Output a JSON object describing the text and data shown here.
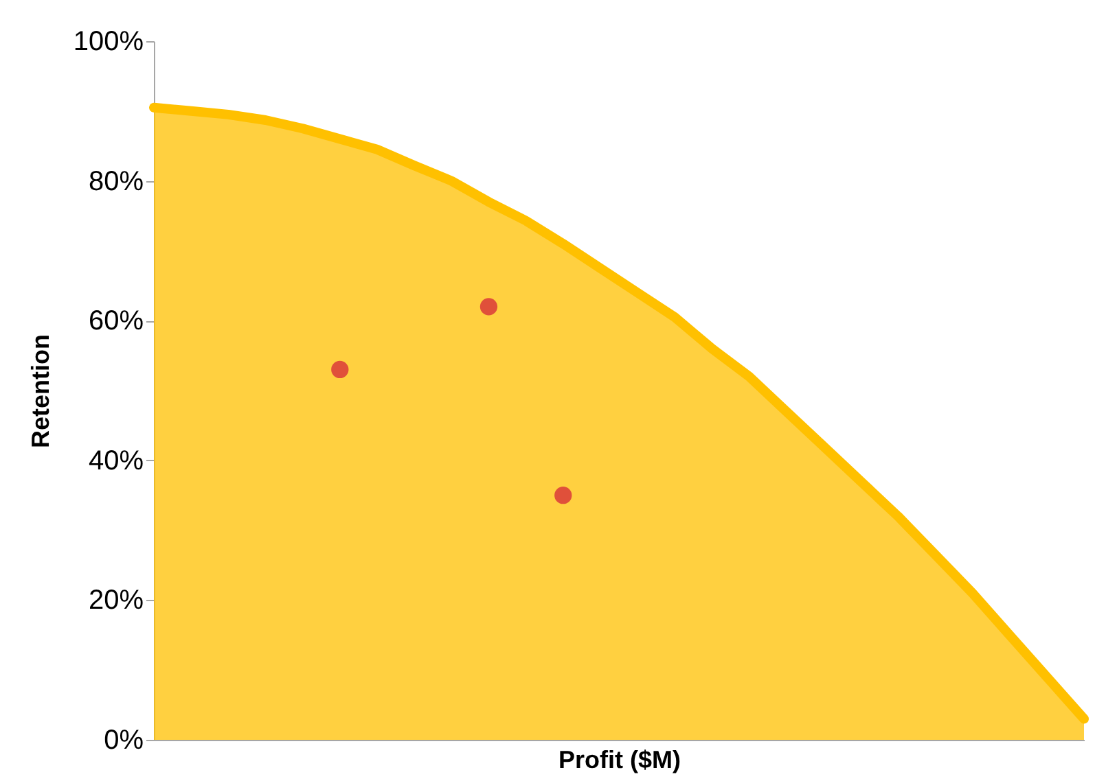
{
  "chart_data": {
    "type": "area",
    "xlabel": "Profit ($M)",
    "ylabel": "Retention",
    "categories": [
      null,
      null,
      null,
      null,
      null,
      null,
      null,
      null,
      null,
      null,
      null,
      null,
      null,
      null,
      null,
      null,
      null,
      null,
      null,
      null,
      null,
      null,
      null,
      null,
      null,
      null
    ],
    "ylim": [
      0,
      100
    ],
    "yticks": [
      {
        "value": 0,
        "label": "0%"
      },
      {
        "value": 20,
        "label": "20%"
      },
      {
        "value": 40,
        "label": "40%"
      },
      {
        "value": 60,
        "label": "60%"
      },
      {
        "value": 80,
        "label": "80%"
      },
      {
        "value": 100,
        "label": "100%"
      }
    ],
    "grid": false,
    "tick_labels": "y",
    "series": [
      {
        "color": "#ffc000",
        "values": [
          90.5,
          90,
          89.5,
          88.7,
          87.5,
          86,
          84.5,
          82.2,
          80,
          77,
          74.3,
          71,
          67.5,
          64,
          60.5,
          56,
          52,
          47,
          42,
          37,
          32,
          26.5,
          21,
          15,
          9,
          3
        ]
      },
      {
        "type": "scatter",
        "color": "#e0503a",
        "marker": "circle",
        "values": [
          null,
          null,
          null,
          null,
          null,
          53,
          null,
          null,
          null,
          62,
          null,
          35,
          null,
          null,
          null,
          null,
          null,
          null,
          null,
          null,
          null,
          null,
          null,
          null,
          null,
          null
        ]
      }
    ]
  }
}
